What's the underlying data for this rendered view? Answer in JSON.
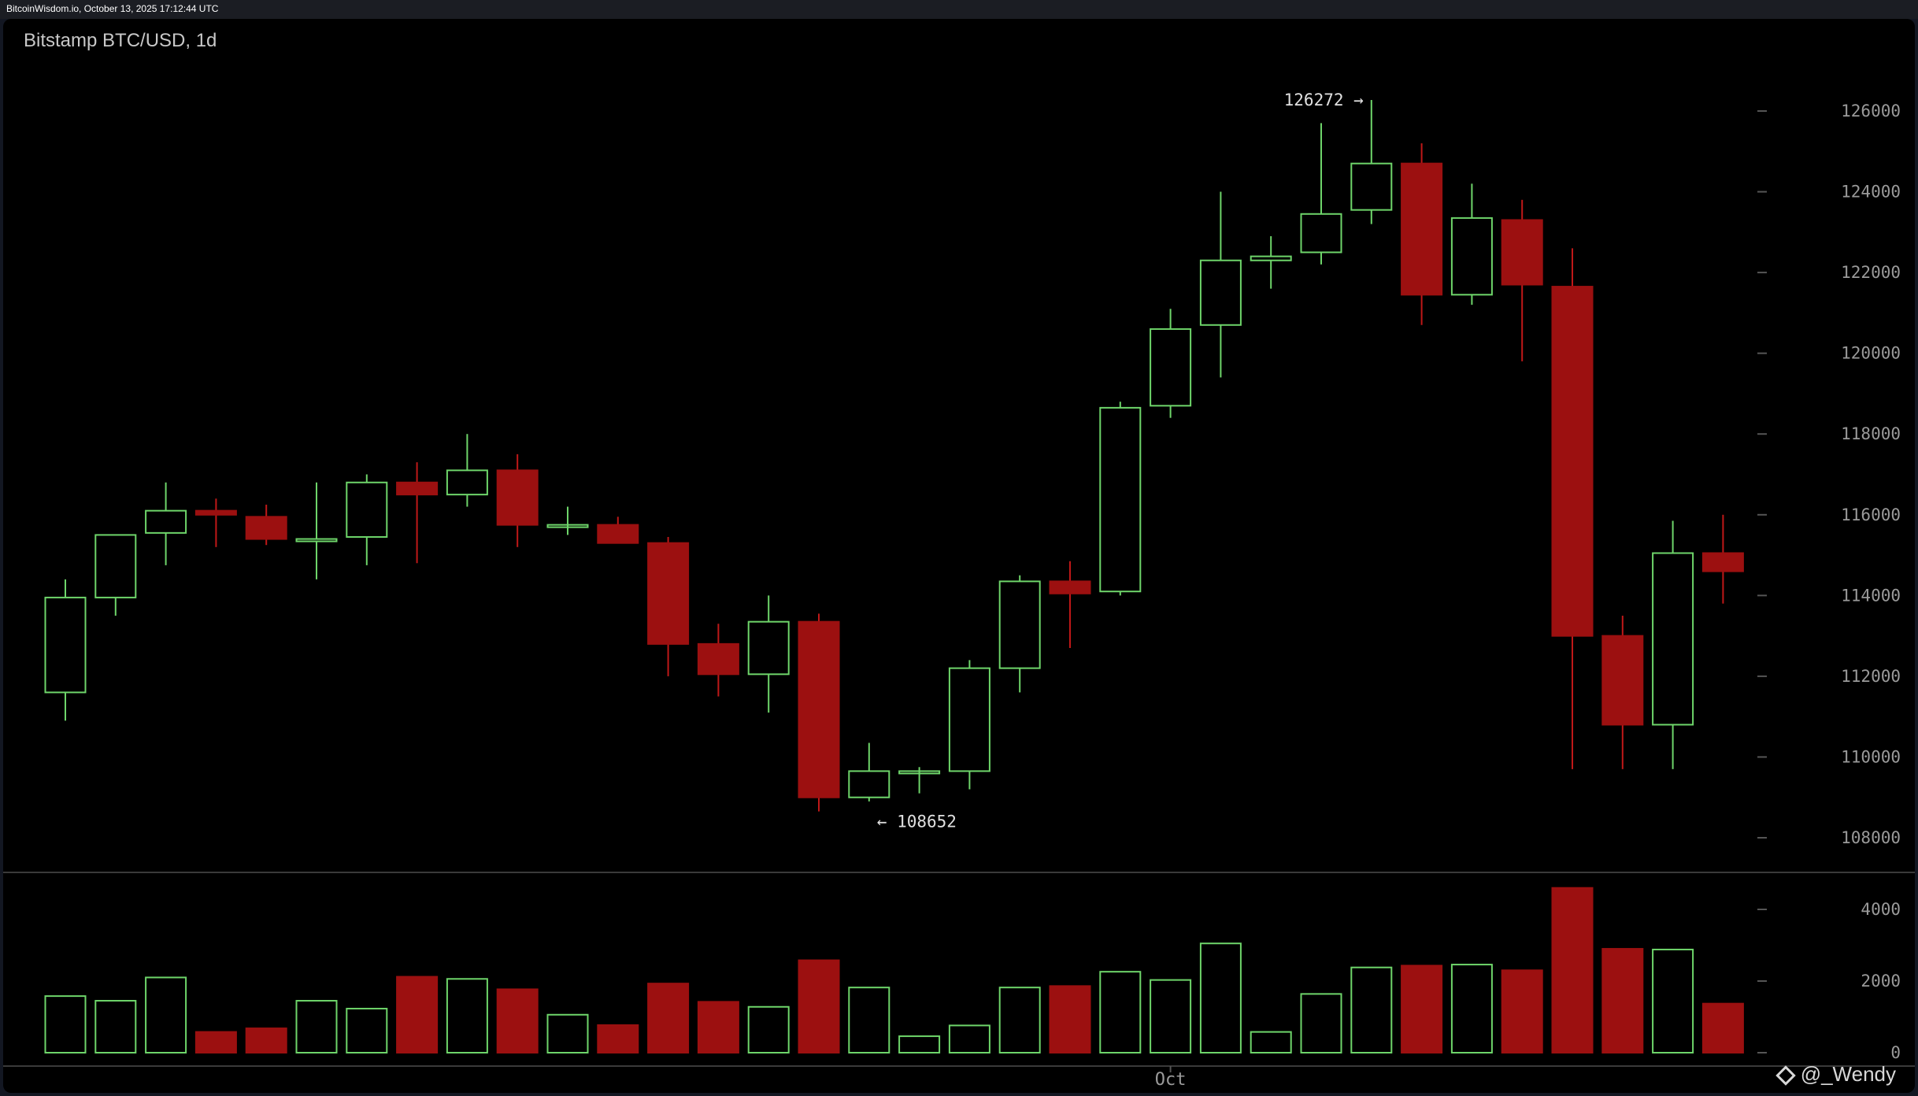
{
  "header": {
    "source_text": "BitcoinWisdom.io, October 13, 2025 17:12:44 UTC"
  },
  "watermark": {
    "text": "@_Wendy",
    "icon": "binance-square-icon"
  },
  "colors": {
    "up": "#6ed56a",
    "down": "#9c1010",
    "background": "#000000",
    "grid_tick": "#555555",
    "text": "#9a9a9a"
  },
  "chart_data": {
    "type": "candlestick",
    "title": "Bitstamp BTC/USD, 1d",
    "interval": "1d",
    "ylim": [
      107000,
      127500
    ],
    "yticks": [
      108000,
      110000,
      112000,
      114000,
      116000,
      118000,
      120000,
      122000,
      124000,
      126000
    ],
    "volume_ylim": [
      0,
      4800
    ],
    "volume_ticks": [
      0,
      2000,
      4000
    ],
    "xtick_labels": [
      {
        "label": "Oct",
        "index": 22
      }
    ],
    "annotations": [
      {
        "text": "126272 →",
        "index": 26,
        "value": 126272,
        "side": "left"
      },
      {
        "text": "← 108652",
        "index": 16,
        "value": 108652,
        "side": "right"
      }
    ],
    "candles": [
      {
        "open": 111600,
        "high": 114400,
        "low": 110900,
        "close": 113950,
        "volume": 1580
      },
      {
        "open": 113950,
        "high": 115500,
        "low": 113500,
        "close": 115500,
        "volume": 1450
      },
      {
        "open": 115550,
        "high": 116800,
        "low": 114750,
        "close": 116100,
        "volume": 2100
      },
      {
        "open": 116100,
        "high": 116400,
        "low": 115200,
        "close": 116000,
        "volume": 580
      },
      {
        "open": 115950,
        "high": 116250,
        "low": 115250,
        "close": 115400,
        "volume": 680
      },
      {
        "open": 115350,
        "high": 116800,
        "low": 114400,
        "close": 115400,
        "volume": 1450
      },
      {
        "open": 115450,
        "high": 117000,
        "low": 114750,
        "close": 116800,
        "volume": 1230
      },
      {
        "open": 116800,
        "high": 117300,
        "low": 114800,
        "close": 116500,
        "volume": 2120
      },
      {
        "open": 116500,
        "high": 118000,
        "low": 116200,
        "close": 117100,
        "volume": 2060
      },
      {
        "open": 117100,
        "high": 117500,
        "low": 115200,
        "close": 115750,
        "volume": 1770
      },
      {
        "open": 115750,
        "high": 116200,
        "low": 115500,
        "close": 115750,
        "volume": 1060
      },
      {
        "open": 115750,
        "high": 115950,
        "low": 115300,
        "close": 115300,
        "volume": 770
      },
      {
        "open": 115300,
        "high": 115450,
        "low": 112000,
        "close": 112800,
        "volume": 1930
      },
      {
        "open": 112800,
        "high": 113300,
        "low": 111500,
        "close": 112050,
        "volume": 1420
      },
      {
        "open": 112050,
        "high": 114000,
        "low": 111100,
        "close": 113350,
        "volume": 1280
      },
      {
        "open": 113350,
        "high": 113550,
        "low": 108652,
        "close": 109000,
        "volume": 2580
      },
      {
        "open": 109000,
        "high": 110350,
        "low": 108900,
        "close": 109650,
        "volume": 1820
      },
      {
        "open": 109650,
        "high": 109750,
        "low": 109100,
        "close": 109650,
        "volume": 460
      },
      {
        "open": 109650,
        "high": 112400,
        "low": 109200,
        "close": 112200,
        "volume": 760
      },
      {
        "open": 112200,
        "high": 114500,
        "low": 111600,
        "close": 114350,
        "volume": 1820
      },
      {
        "open": 114350,
        "high": 114850,
        "low": 112700,
        "close": 114050,
        "volume": 1860
      },
      {
        "open": 114100,
        "high": 118800,
        "low": 114000,
        "close": 118650,
        "volume": 2260
      },
      {
        "open": 118700,
        "high": 121100,
        "low": 118400,
        "close": 120600,
        "volume": 2030
      },
      {
        "open": 120700,
        "high": 124000,
        "low": 119400,
        "close": 122300,
        "volume": 3050
      },
      {
        "open": 122300,
        "high": 122900,
        "low": 121600,
        "close": 122400,
        "volume": 580
      },
      {
        "open": 122500,
        "high": 125700,
        "low": 122200,
        "close": 123450,
        "volume": 1640
      },
      {
        "open": 123550,
        "high": 126272,
        "low": 123200,
        "close": 124700,
        "volume": 2380
      },
      {
        "open": 124700,
        "high": 125200,
        "low": 120700,
        "close": 121450,
        "volume": 2430
      },
      {
        "open": 121450,
        "high": 124200,
        "low": 121200,
        "close": 123350,
        "volume": 2460
      },
      {
        "open": 123300,
        "high": 123800,
        "low": 119800,
        "close": 121700,
        "volume": 2300
      },
      {
        "open": 121650,
        "high": 122600,
        "low": 109700,
        "close": 113000,
        "volume": 4600
      },
      {
        "open": 113000,
        "high": 113500,
        "low": 109700,
        "close": 110800,
        "volume": 2900
      },
      {
        "open": 110800,
        "high": 115850,
        "low": 109700,
        "close": 115050,
        "volume": 2880
      },
      {
        "open": 115050,
        "high": 116000,
        "low": 113800,
        "close": 114600,
        "volume": 1370
      }
    ]
  }
}
